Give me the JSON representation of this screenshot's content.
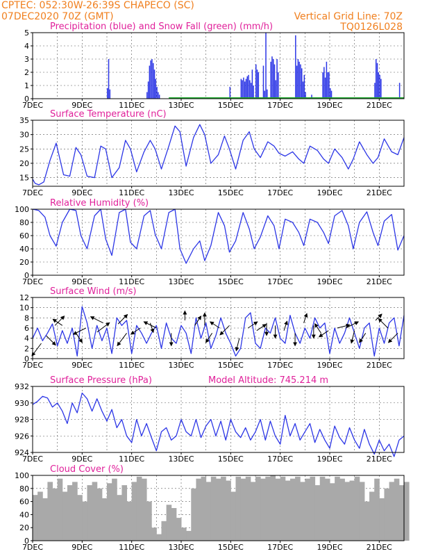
{
  "header": {
    "station": "CPTEC:   052:30W-26:39S   CHAPECO (SC)",
    "date": "07DEC2020 70Z (GMT)",
    "grid_note": "Vertical Grid Line: 70Z",
    "code": "TQ0126L028"
  },
  "colors": {
    "header": "#f07f1e",
    "title": "#e0209a",
    "series": "#2b35e6",
    "snow": "#1faa2e",
    "cloud": "#a9a9a9"
  },
  "chart_data": [
    {
      "id": "precip",
      "type": "bar",
      "title": "Precipitation (blue) and Snow Fall (green) (mm/h)",
      "ylim": [
        0,
        5
      ],
      "yticks": [
        0,
        1,
        2,
        3,
        4,
        5
      ],
      "xticks": [
        "7DEC",
        "9DEC",
        "11DEC",
        "13DEC",
        "15DEC",
        "17DEC",
        "19DEC",
        "21DEC"
      ],
      "xrange_days": [
        7,
        22
      ],
      "x": [
        10.0,
        10.05,
        10.1,
        11.6,
        11.65,
        11.7,
        11.75,
        11.8,
        11.85,
        11.9,
        11.95,
        12.0,
        12.05,
        12.1,
        14.95,
        15.4,
        15.45,
        15.5,
        15.55,
        15.6,
        15.65,
        15.7,
        15.75,
        15.8,
        15.85,
        15.9,
        16.0,
        16.05,
        16.1,
        16.3,
        16.35,
        16.4,
        16.45,
        16.6,
        16.65,
        16.7,
        16.75,
        16.8,
        16.85,
        16.9,
        17.6,
        17.65,
        17.7,
        17.75,
        17.8,
        17.85,
        17.9,
        17.95,
        18.0,
        18.25,
        18.7,
        18.75,
        18.8,
        18.85,
        18.9,
        18.95,
        19.0,
        19.05,
        20.8,
        20.85,
        20.9,
        20.95,
        21.0,
        21.05,
        21.8
      ],
      "values": [
        0.8,
        3.0,
        0.7,
        0.5,
        1.3,
        2.5,
        2.9,
        3.0,
        2.7,
        2.2,
        1.5,
        0.9,
        0.5,
        0.3,
        0.9,
        1.5,
        1.4,
        1.6,
        1.3,
        1.5,
        1.7,
        1.8,
        1.4,
        1.2,
        2.2,
        1.0,
        2.6,
        2.2,
        2.0,
        2.5,
        0.6,
        5.0,
        0.7,
        2.8,
        3.2,
        3.0,
        2.6,
        1.4,
        3.0,
        2.0,
        4.8,
        2.5,
        3.0,
        2.8,
        2.6,
        2.3,
        1.3,
        1.8,
        0.5,
        0.3,
        2.0,
        2.4,
        1.6,
        2.8,
        2.0,
        2.0,
        0.8,
        0.6,
        1.2,
        3.0,
        2.7,
        2.0,
        1.8,
        1.5,
        1.2
      ],
      "snow": [
        [
          12.5,
          22.0,
          0.05
        ]
      ]
    },
    {
      "id": "temp",
      "type": "line",
      "title": "Surface Temperature (nC)",
      "ylim": [
        12,
        35
      ],
      "yticks": [
        15,
        20,
        25,
        30,
        35
      ],
      "xticks": [
        "7DEC",
        "9DEC",
        "11DEC",
        "13DEC",
        "15DEC",
        "17DEC",
        "19DEC",
        "21DEC"
      ],
      "xrange_days": [
        7,
        22
      ],
      "x": [
        7.0,
        7.1,
        7.25,
        7.45,
        7.7,
        7.95,
        8.25,
        8.5,
        8.75,
        8.95,
        9.2,
        9.5,
        9.75,
        9.95,
        10.2,
        10.5,
        10.75,
        10.95,
        11.2,
        11.5,
        11.75,
        11.95,
        12.2,
        12.5,
        12.75,
        12.95,
        13.2,
        13.5,
        13.75,
        13.95,
        14.2,
        14.5,
        14.75,
        14.95,
        15.2,
        15.5,
        15.75,
        15.95,
        16.2,
        16.5,
        16.75,
        16.95,
        17.2,
        17.5,
        17.75,
        17.95,
        18.2,
        18.5,
        18.75,
        18.95,
        19.2,
        19.5,
        19.75,
        19.95,
        20.2,
        20.5,
        20.75,
        20.95,
        21.2,
        21.5,
        21.75,
        22.0
      ],
      "values": [
        14.5,
        13.0,
        12.5,
        13.5,
        21.0,
        27.0,
        16.0,
        15.5,
        25.5,
        23.0,
        15.5,
        15.0,
        26.0,
        25.0,
        15.0,
        18.5,
        28.0,
        25.0,
        17.0,
        24.0,
        28.0,
        25.0,
        18.0,
        26.0,
        33.0,
        31.0,
        19.0,
        29.0,
        33.5,
        30.0,
        20.0,
        23.0,
        29.5,
        25.0,
        18.0,
        28.0,
        31.0,
        25.0,
        22.0,
        27.5,
        26.0,
        23.5,
        22.5,
        24.0,
        21.5,
        20.0,
        26.0,
        24.5,
        21.5,
        20.0,
        25.0,
        22.0,
        18.0,
        21.5,
        27.5,
        23.0,
        20.0,
        22.0,
        28.5,
        24.0,
        23.0,
        29.0
      ]
    },
    {
      "id": "rh",
      "type": "line",
      "title": "Relative Humidity (%)",
      "ylim": [
        0,
        100
      ],
      "yticks": [
        0,
        20,
        40,
        60,
        80,
        100
      ],
      "xticks": [
        "7DEC",
        "9DEC",
        "11DEC",
        "13DEC",
        "15DEC",
        "17DEC",
        "19DEC",
        "21DEC"
      ],
      "xrange_days": [
        7,
        22
      ],
      "x": [
        7.0,
        7.25,
        7.5,
        7.7,
        7.95,
        8.2,
        8.5,
        8.75,
        8.95,
        9.2,
        9.5,
        9.75,
        9.95,
        10.2,
        10.5,
        10.75,
        10.95,
        11.2,
        11.5,
        11.75,
        11.95,
        12.2,
        12.5,
        12.75,
        12.95,
        13.2,
        13.5,
        13.75,
        13.95,
        14.2,
        14.5,
        14.75,
        14.95,
        15.2,
        15.5,
        15.75,
        15.95,
        16.2,
        16.5,
        16.75,
        16.95,
        17.2,
        17.5,
        17.75,
        17.95,
        18.2,
        18.5,
        18.75,
        18.95,
        19.2,
        19.5,
        19.75,
        19.95,
        20.2,
        20.5,
        20.75,
        20.95,
        21.2,
        21.5,
        21.75,
        22.0
      ],
      "values": [
        100,
        98,
        88,
        60,
        44,
        80,
        100,
        98,
        60,
        40,
        90,
        100,
        55,
        30,
        95,
        100,
        50,
        40,
        90,
        98,
        62,
        40,
        95,
        100,
        40,
        18,
        40,
        52,
        22,
        45,
        95,
        75,
        35,
        52,
        95,
        70,
        40,
        58,
        90,
        75,
        40,
        85,
        80,
        65,
        45,
        85,
        80,
        65,
        48,
        90,
        98,
        75,
        40,
        80,
        96,
        65,
        45,
        82,
        92,
        38,
        60
      ]
    },
    {
      "id": "wind",
      "type": "line",
      "title": "Surface Wind (m/s)",
      "ylim": [
        0,
        12
      ],
      "yticks": [
        0,
        2,
        4,
        6,
        8,
        10,
        12
      ],
      "xticks": [
        "7DEC",
        "9DEC",
        "11DEC",
        "13DEC",
        "15DEC",
        "17DEC",
        "19DEC",
        "21DEC"
      ],
      "xrange_days": [
        7,
        22
      ],
      "x": [
        7.0,
        7.2,
        7.4,
        7.6,
        7.8,
        8.0,
        8.2,
        8.4,
        8.6,
        8.8,
        9.0,
        9.2,
        9.4,
        9.6,
        9.8,
        10.0,
        10.2,
        10.4,
        10.6,
        10.8,
        11.0,
        11.2,
        11.4,
        11.6,
        11.8,
        12.0,
        12.2,
        12.4,
        12.6,
        12.8,
        13.0,
        13.2,
        13.4,
        13.6,
        13.8,
        14.0,
        14.2,
        14.4,
        14.6,
        14.8,
        15.0,
        15.2,
        15.4,
        15.6,
        15.8,
        16.0,
        16.2,
        16.4,
        16.6,
        16.8,
        17.0,
        17.2,
        17.4,
        17.6,
        17.8,
        18.0,
        18.2,
        18.4,
        18.6,
        18.8,
        19.0,
        19.2,
        19.4,
        19.6,
        19.8,
        20.0,
        20.2,
        20.4,
        20.6,
        20.8,
        21.0,
        21.2,
        21.4,
        21.6,
        21.8,
        22.0
      ],
      "values": [
        4.0,
        6.0,
        3.5,
        5.0,
        6.8,
        2.5,
        5.5,
        3.0,
        6.0,
        0.5,
        10.2,
        7.0,
        2.0,
        6.5,
        3.5,
        6.0,
        1.0,
        8.0,
        6.5,
        7.5,
        1.0,
        6.5,
        5.0,
        3.0,
        5.0,
        6.5,
        2.0,
        7.0,
        4.0,
        3.0,
        6.5,
        5.0,
        1.0,
        8.0,
        4.0,
        7.0,
        2.0,
        4.5,
        8.0,
        5.0,
        3.0,
        0.5,
        2.0,
        8.0,
        9.0,
        3.0,
        2.0,
        6.0,
        5.0,
        8.0,
        4.0,
        3.0,
        8.5,
        5.0,
        3.0,
        6.0,
        4.0,
        8.0,
        6.0,
        7.0,
        1.0,
        6.0,
        3.0,
        5.0,
        8.0,
        5.0,
        2.0,
        6.0,
        7.0,
        0.5,
        6.0,
        3.0,
        7.0,
        8.0,
        2.5,
        8.5
      ],
      "vectors": [
        [
          7.35,
          3.0,
          -3,
          -4
        ],
        [
          7.55,
          4.5,
          3,
          -3
        ],
        [
          7.9,
          6.5,
          3,
          3
        ],
        [
          8.2,
          6.5,
          -3,
          2
        ],
        [
          8.75,
          5.0,
          2,
          -3
        ],
        [
          9.15,
          6.0,
          -4,
          -2
        ],
        [
          9.6,
          5.2,
          4,
          3
        ],
        [
          9.85,
          7.0,
          -4,
          2
        ],
        [
          10.45,
          6.8,
          3,
          3
        ],
        [
          10.8,
          5.0,
          -3,
          -4
        ],
        [
          11.35,
          6.0,
          -3,
          -2
        ],
        [
          11.75,
          7.0,
          1,
          -3
        ],
        [
          12.0,
          6.0,
          -4,
          2
        ],
        [
          12.6,
          5.0,
          0,
          -4
        ],
        [
          13.15,
          7.5,
          0,
          3
        ],
        [
          13.55,
          6.5,
          2,
          3
        ],
        [
          13.95,
          6.5,
          0,
          4
        ],
        [
          14.25,
          5.0,
          -2,
          -3
        ],
        [
          14.55,
          6.0,
          -3,
          2
        ],
        [
          14.95,
          6.5,
          -3,
          -3
        ],
        [
          15.35,
          4.0,
          -1,
          -4
        ],
        [
          15.7,
          6.0,
          3,
          2
        ],
        [
          16.05,
          5.5,
          3,
          2
        ],
        [
          16.45,
          7.0,
          0,
          -4
        ],
        [
          16.8,
          6.5,
          0,
          -4
        ],
        [
          17.15,
          5.5,
          1,
          3
        ],
        [
          17.6,
          5.0,
          0,
          -4
        ],
        [
          17.95,
          7.0,
          1,
          3
        ],
        [
          18.35,
          6.5,
          0,
          -4
        ],
        [
          18.65,
          5.0,
          -2,
          3
        ],
        [
          18.95,
          5.5,
          -3,
          -2
        ],
        [
          19.3,
          6.0,
          4,
          1
        ],
        [
          19.65,
          6.0,
          4,
          2
        ],
        [
          20.0,
          5.5,
          -1,
          -4
        ],
        [
          20.45,
          5.0,
          -2,
          -3
        ],
        [
          20.85,
          7.5,
          2,
          2
        ],
        [
          21.35,
          6.0,
          -3,
          3
        ],
        [
          21.75,
          5.0,
          -3,
          -3
        ]
      ]
    },
    {
      "id": "press",
      "type": "line",
      "title": "Surface Pressure (hPa)",
      "subtitle": "Model Altitude: 745.214 m",
      "ylim": [
        924,
        932
      ],
      "yticks": [
        924,
        926,
        928,
        930,
        932
      ],
      "xticks": [
        "7DEC",
        "9DEC",
        "11DEC",
        "13DEC",
        "15DEC",
        "17DEC",
        "19DEC",
        "21DEC"
      ],
      "xrange_days": [
        7,
        22
      ],
      "x": [
        7.0,
        7.2,
        7.4,
        7.6,
        7.8,
        8.0,
        8.2,
        8.4,
        8.6,
        8.8,
        9.0,
        9.2,
        9.4,
        9.6,
        9.8,
        10.0,
        10.2,
        10.4,
        10.6,
        10.8,
        11.0,
        11.2,
        11.4,
        11.6,
        11.8,
        12.0,
        12.2,
        12.4,
        12.6,
        12.8,
        13.0,
        13.2,
        13.4,
        13.6,
        13.8,
        14.0,
        14.2,
        14.4,
        14.6,
        14.8,
        15.0,
        15.2,
        15.4,
        15.6,
        15.8,
        16.0,
        16.2,
        16.4,
        16.6,
        16.8,
        17.0,
        17.2,
        17.4,
        17.6,
        17.8,
        18.0,
        18.2,
        18.4,
        18.6,
        18.8,
        19.0,
        19.2,
        19.4,
        19.6,
        19.8,
        20.0,
        20.2,
        20.4,
        20.6,
        20.8,
        21.0,
        21.2,
        21.4,
        21.6,
        21.8,
        22.0
      ],
      "values": [
        929.8,
        930.2,
        930.8,
        930.6,
        929.5,
        930.0,
        929.0,
        927.5,
        930.0,
        928.8,
        931.2,
        930.5,
        929.0,
        930.5,
        929.0,
        927.8,
        929.2,
        927.0,
        928.0,
        926.0,
        925.2,
        928.0,
        926.0,
        927.5,
        925.8,
        924.2,
        926.5,
        927.0,
        925.5,
        926.0,
        928.0,
        926.5,
        926.0,
        928.0,
        925.8,
        927.2,
        928.0,
        926.0,
        927.8,
        925.5,
        928.0,
        926.5,
        925.8,
        927.0,
        925.5,
        926.5,
        928.0,
        925.5,
        927.8,
        926.0,
        925.0,
        928.5,
        926.0,
        927.5,
        925.5,
        926.5,
        927.5,
        925.2,
        926.8,
        925.5,
        924.5,
        927.2,
        925.8,
        925.0,
        927.0,
        925.5,
        924.5,
        926.8,
        925.0,
        923.8,
        925.5,
        924.2,
        925.0,
        923.5,
        925.5,
        926.0
      ]
    },
    {
      "id": "cloud",
      "type": "area",
      "title": "Cloud Cover (%)",
      "ylim": [
        0,
        100
      ],
      "yticks": [
        0,
        20,
        40,
        60,
        80,
        100
      ],
      "xticks": [
        "7DEC",
        "9DEC",
        "11DEC",
        "13DEC",
        "15DEC",
        "17DEC",
        "19DEC",
        "21DEC"
      ],
      "xrange_days": [
        7,
        22
      ],
      "x": [
        7.0,
        7.2,
        7.4,
        7.6,
        7.8,
        8.0,
        8.2,
        8.4,
        8.6,
        8.8,
        9.0,
        9.2,
        9.4,
        9.6,
        9.8,
        10.0,
        10.2,
        10.4,
        10.6,
        10.8,
        11.0,
        11.2,
        11.4,
        11.6,
        11.8,
        12.0,
        12.2,
        12.4,
        12.6,
        12.8,
        13.0,
        13.2,
        13.4,
        13.6,
        13.8,
        14.0,
        14.2,
        14.4,
        14.6,
        14.8,
        15.0,
        15.2,
        15.4,
        15.6,
        15.8,
        16.0,
        16.2,
        16.4,
        16.6,
        16.8,
        17.0,
        17.2,
        17.4,
        17.6,
        17.8,
        18.0,
        18.2,
        18.4,
        18.6,
        18.8,
        19.0,
        19.2,
        19.4,
        19.6,
        19.8,
        20.0,
        20.2,
        20.4,
        20.6,
        20.8,
        21.0,
        21.2,
        21.4,
        21.6,
        21.8,
        22.0
      ],
      "values": [
        70,
        75,
        65,
        90,
        80,
        95,
        75,
        85,
        90,
        70,
        60,
        85,
        90,
        80,
        65,
        88,
        95,
        70,
        85,
        60,
        90,
        98,
        95,
        60,
        20,
        10,
        30,
        55,
        50,
        35,
        20,
        15,
        80,
        95,
        98,
        90,
        98,
        95,
        98,
        92,
        75,
        98,
        95,
        98,
        90,
        98,
        95,
        98,
        100,
        95,
        98,
        92,
        95,
        98,
        90,
        95,
        98,
        85,
        98,
        95,
        88,
        98,
        95,
        90,
        92,
        98,
        90,
        60,
        75,
        95,
        65,
        80,
        90,
        95,
        85,
        90
      ]
    }
  ]
}
